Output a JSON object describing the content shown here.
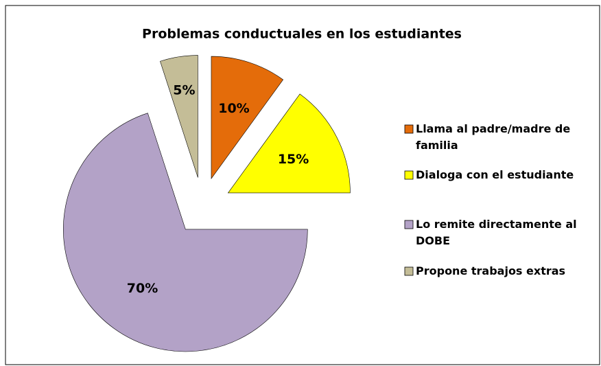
{
  "chart_data": {
    "type": "pie",
    "title": "Problemas conductuales en  los estudiantes",
    "categories": [
      "Llama al padre/madre de familia",
      "Dialoga con el estudiante",
      "Lo remite directamente al DOBE",
      "Propone trabajos extras"
    ],
    "values": [
      10,
      15,
      70,
      5
    ],
    "value_labels": [
      "10%",
      "15%",
      "70%",
      "5%"
    ],
    "colors": [
      "#e46c0a",
      "#ffff00",
      "#b3a2c7",
      "#c4bd97"
    ],
    "legend": "right"
  }
}
